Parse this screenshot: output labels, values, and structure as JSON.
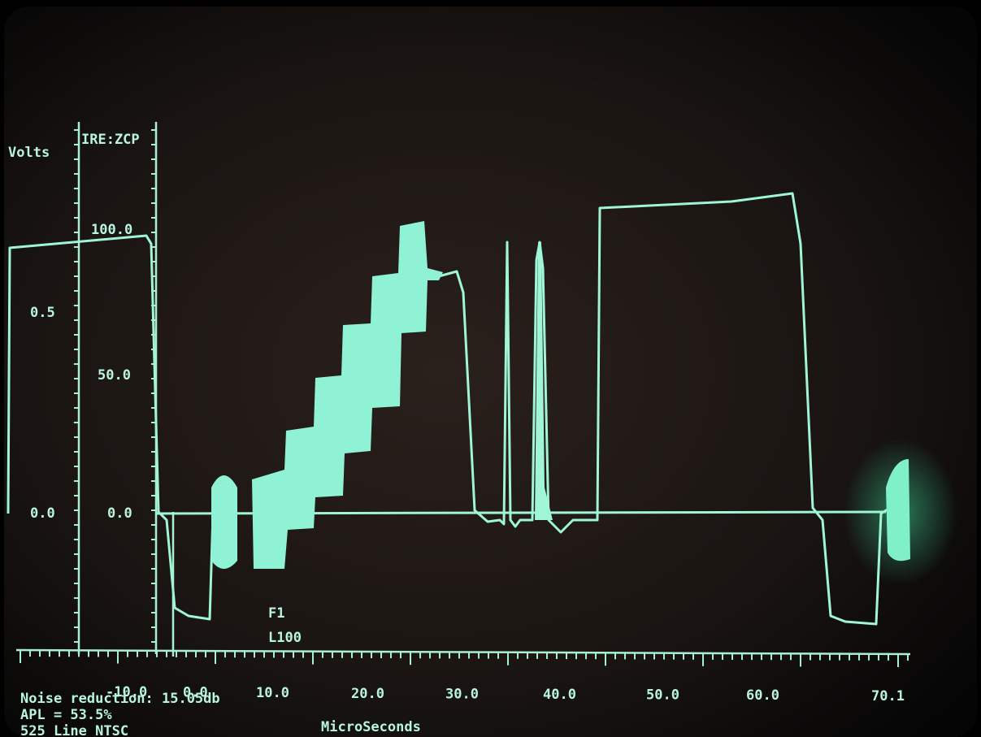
{
  "screen": {
    "left_axis": {
      "title": "Volts",
      "labels": [
        "0.5",
        "0.0"
      ]
    },
    "ire_axis": {
      "title": "IRE:ZCP",
      "labels": [
        "100.0",
        "50.0",
        "0.0"
      ]
    },
    "time_axis": {
      "labels": [
        "-10.0",
        "0.0",
        "10.0",
        "20.0",
        "30.0",
        "40.0",
        "50.0",
        "60.0",
        "70.1"
      ],
      "title": "MicroSeconds"
    },
    "field_line": [
      "F1",
      "L100"
    ],
    "status": [
      "Noise reduction: 15.05db",
      "APL = 53.5%",
      "525 Line NTSC"
    ]
  }
}
